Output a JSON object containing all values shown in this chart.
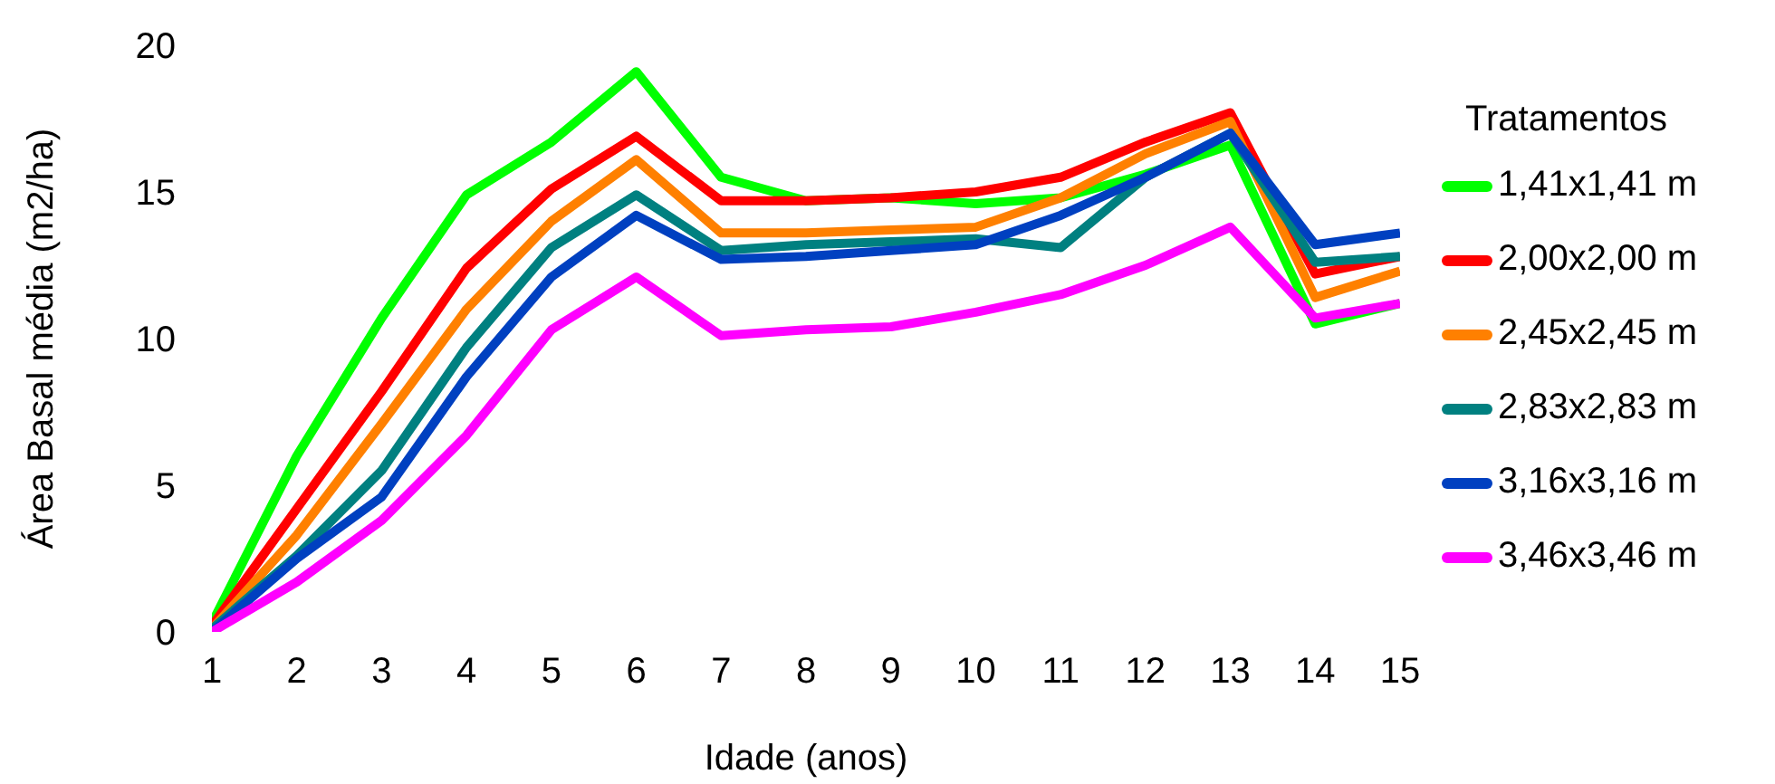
{
  "chart_data": {
    "type": "line",
    "xlabel": "Idade (anos)",
    "ylabel": "Área Basal média (m2/ha)",
    "legend_title": "Tratamentos",
    "legend": "right",
    "grid": false,
    "marker": "none",
    "line_style": "solid",
    "x": [
      1,
      2,
      3,
      4,
      5,
      6,
      7,
      8,
      9,
      10,
      11,
      12,
      13,
      14,
      15
    ],
    "xlim": [
      1,
      15
    ],
    "xticks": [
      1,
      2,
      3,
      4,
      5,
      6,
      7,
      8,
      9,
      10,
      11,
      12,
      13,
      14,
      15
    ],
    "ylim": [
      0,
      20
    ],
    "yticks": [
      0,
      5,
      10,
      15,
      20
    ],
    "series": [
      {
        "name": "1,41x1,41 m",
        "color": "#00ff00",
        "values": [
          0.3,
          6.0,
          10.7,
          14.9,
          16.7,
          19.1,
          15.5,
          14.7,
          14.8,
          14.6,
          14.8,
          15.6,
          16.6,
          10.5,
          11.2
        ]
      },
      {
        "name": "2,00x2,00 m",
        "color": "#ff0000",
        "values": [
          0.2,
          4.2,
          8.2,
          12.4,
          15.1,
          16.9,
          14.7,
          14.7,
          14.8,
          15.0,
          15.5,
          16.7,
          17.7,
          12.2,
          12.8
        ]
      },
      {
        "name": "2,45x2,45 m",
        "color": "#ff8000",
        "values": [
          0.1,
          3.3,
          7.1,
          11.0,
          14.0,
          16.1,
          13.6,
          13.6,
          13.7,
          13.8,
          14.8,
          16.3,
          17.4,
          11.4,
          12.3
        ]
      },
      {
        "name": "2,83x2,83 m",
        "color": "#008080",
        "values": [
          0.1,
          2.6,
          5.5,
          9.7,
          13.1,
          14.9,
          13.0,
          13.2,
          13.3,
          13.4,
          13.1,
          15.5,
          17.0,
          12.6,
          12.8
        ]
      },
      {
        "name": "3,16x3,16 m",
        "color": "#0040c0",
        "values": [
          0,
          2.5,
          4.6,
          8.7,
          12.1,
          14.2,
          12.7,
          12.8,
          13.0,
          13.2,
          14.2,
          15.5,
          17.0,
          13.2,
          13.6
        ]
      },
      {
        "name": "3,46x3,46 m",
        "color": "#ff00ff",
        "values": [
          0,
          1.7,
          3.8,
          6.7,
          10.3,
          12.1,
          10.1,
          10.3,
          10.4,
          10.9,
          11.5,
          12.5,
          13.8,
          10.7,
          11.2
        ]
      }
    ]
  }
}
